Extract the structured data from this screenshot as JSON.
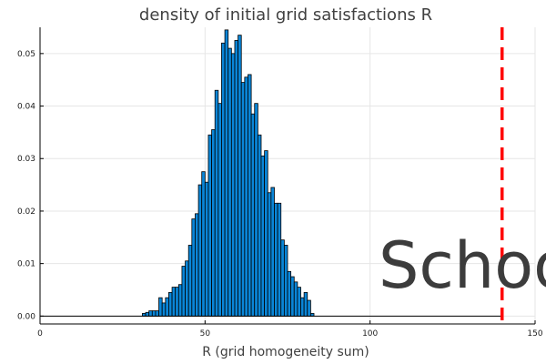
{
  "chart_data": {
    "type": "bar",
    "title": "density of initial grid satisfactions R",
    "xlabel": "R (grid homogeneity sum)",
    "ylabel": "",
    "xlim": [
      0,
      150
    ],
    "ylim": [
      -0.0015,
      0.055
    ],
    "xticks": [
      "0",
      "50",
      "100",
      "150"
    ],
    "xtick_values": [
      0,
      50,
      100,
      150
    ],
    "yticks": [
      "0.00",
      "0.01",
      "0.02",
      "0.03",
      "0.04",
      "0.05"
    ],
    "ytick_values": [
      0,
      0.01,
      0.02,
      0.03,
      0.04,
      0.05
    ],
    "grid": true,
    "bin_width": 1,
    "bin_starts": [
      31,
      32,
      33,
      34,
      35,
      36,
      37,
      38,
      39,
      40,
      41,
      42,
      43,
      44,
      45,
      46,
      47,
      48,
      49,
      50,
      51,
      52,
      53,
      54,
      55,
      56,
      57,
      58,
      59,
      60,
      61,
      62,
      63,
      64,
      65,
      66,
      67,
      68,
      69,
      70,
      71,
      72,
      73,
      74,
      75,
      76,
      77,
      78,
      79,
      80,
      81,
      82
    ],
    "values": [
      0.0005,
      0.0007,
      0.001,
      0.001,
      0.001,
      0.0035,
      0.0025,
      0.0035,
      0.0045,
      0.0055,
      0.0055,
      0.006,
      0.0095,
      0.0105,
      0.0135,
      0.0185,
      0.0195,
      0.025,
      0.0275,
      0.0255,
      0.0345,
      0.0355,
      0.043,
      0.0405,
      0.052,
      0.0545,
      0.051,
      0.05,
      0.0525,
      0.0535,
      0.0445,
      0.0455,
      0.046,
      0.0385,
      0.0405,
      0.0345,
      0.0305,
      0.0315,
      0.0235,
      0.0245,
      0.0215,
      0.0215,
      0.0145,
      0.0135,
      0.0085,
      0.0075,
      0.0065,
      0.0055,
      0.0035,
      0.0045,
      0.003,
      0.0005
    ],
    "reference_line": {
      "x": 140,
      "color": "#ff0000",
      "style": "dashed"
    },
    "annotation": "School",
    "colors": {
      "bar": "#0a86d8",
      "reference": "#ff0000",
      "grid": "#e6e6e6"
    }
  }
}
